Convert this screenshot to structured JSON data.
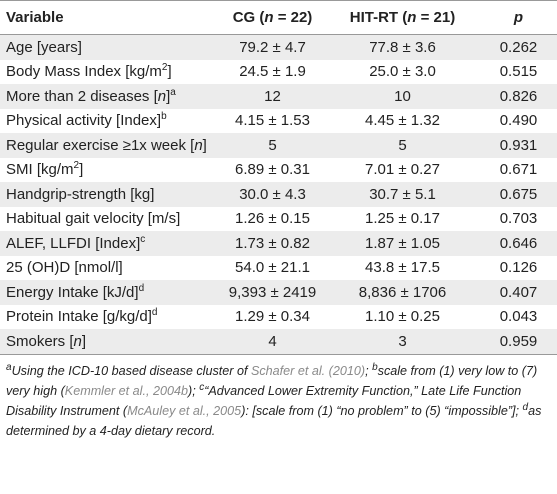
{
  "table": {
    "header": [
      [
        "Variable"
      ],
      [
        "CG (",
        {
          "i": "n"
        },
        " = 22)"
      ],
      [
        "HIT-RT (",
        {
          "i": "n"
        },
        " = 21)"
      ],
      [
        {
          "i": "p"
        }
      ]
    ],
    "rows": [
      [
        [
          "Age [years]"
        ],
        "79.2 ± 4.7",
        "77.8 ± 3.6",
        "0.262"
      ],
      [
        [
          "Body Mass Index [kg/m",
          {
            "sup": "2"
          },
          "]"
        ],
        "24.5 ± 1.9",
        "25.0 ± 3.0",
        "0.515"
      ],
      [
        [
          "More than 2 diseases [",
          {
            "i": "n"
          },
          "]",
          {
            "sup": "a"
          }
        ],
        "12",
        "10",
        "0.826"
      ],
      [
        [
          "Physical activity [Index]",
          {
            "sup": "b"
          }
        ],
        "4.15 ± 1.53",
        "4.45 ± 1.32",
        "0.490"
      ],
      [
        [
          "Regular exercise ≥1x week [",
          {
            "i": "n"
          },
          "]"
        ],
        "5",
        "5",
        "0.931"
      ],
      [
        [
          "SMI [kg/m",
          {
            "sup": "2"
          },
          "]"
        ],
        "6.89 ± 0.31",
        "7.01 ± 0.27",
        "0.671"
      ],
      [
        [
          "Handgrip-strength [kg]"
        ],
        "30.0 ± 4.3",
        "30.7 ± 5.1",
        "0.675"
      ],
      [
        [
          "Habitual gait velocity [m/s]"
        ],
        "1.26 ± 0.15",
        "1.25 ± 0.17",
        "0.703"
      ],
      [
        [
          "ALEF, LLFDI [Index]",
          {
            "sup": "c"
          }
        ],
        "1.73 ± 0.82",
        "1.87 ± 1.05",
        "0.646"
      ],
      [
        [
          "25 (OH)D [nmol/l]"
        ],
        "54.0 ± 21.1",
        "43.8 ± 17.5",
        "0.126"
      ],
      [
        [
          "Energy Intake [kJ/d]",
          {
            "sup": "d"
          }
        ],
        "9,393 ± 2419",
        "8,836 ± 1706",
        "0.407"
      ],
      [
        [
          "Protein Intake [g/kg/d]",
          {
            "sup": "d"
          }
        ],
        "1.29 ± 0.34",
        "1.10 ± 0.25",
        "0.043"
      ],
      [
        [
          "Smokers [",
          {
            "i": "n"
          },
          "]"
        ],
        "4",
        "3",
        "0.959"
      ]
    ]
  },
  "footnote": [
    {
      "sup": "a"
    },
    "Using the ICD-10 based disease cluster of ",
    {
      "link": "Schafer et al. (2010)"
    },
    "; ",
    {
      "sup": "b"
    },
    "scale from (1) very low to (7) very high (",
    {
      "link": "Kemmler et al., 2004b"
    },
    "); ",
    {
      "sup": "c"
    },
    "“Advanced Lower Extremity Function,” Late Life Function Disability Instrument (",
    {
      "link": "McAuley et al., 2005"
    },
    "): [scale from (1) “no problem” to (5) “impossible”]; ",
    {
      "sup": "d"
    },
    "as determined by a 4-day dietary record."
  ]
}
